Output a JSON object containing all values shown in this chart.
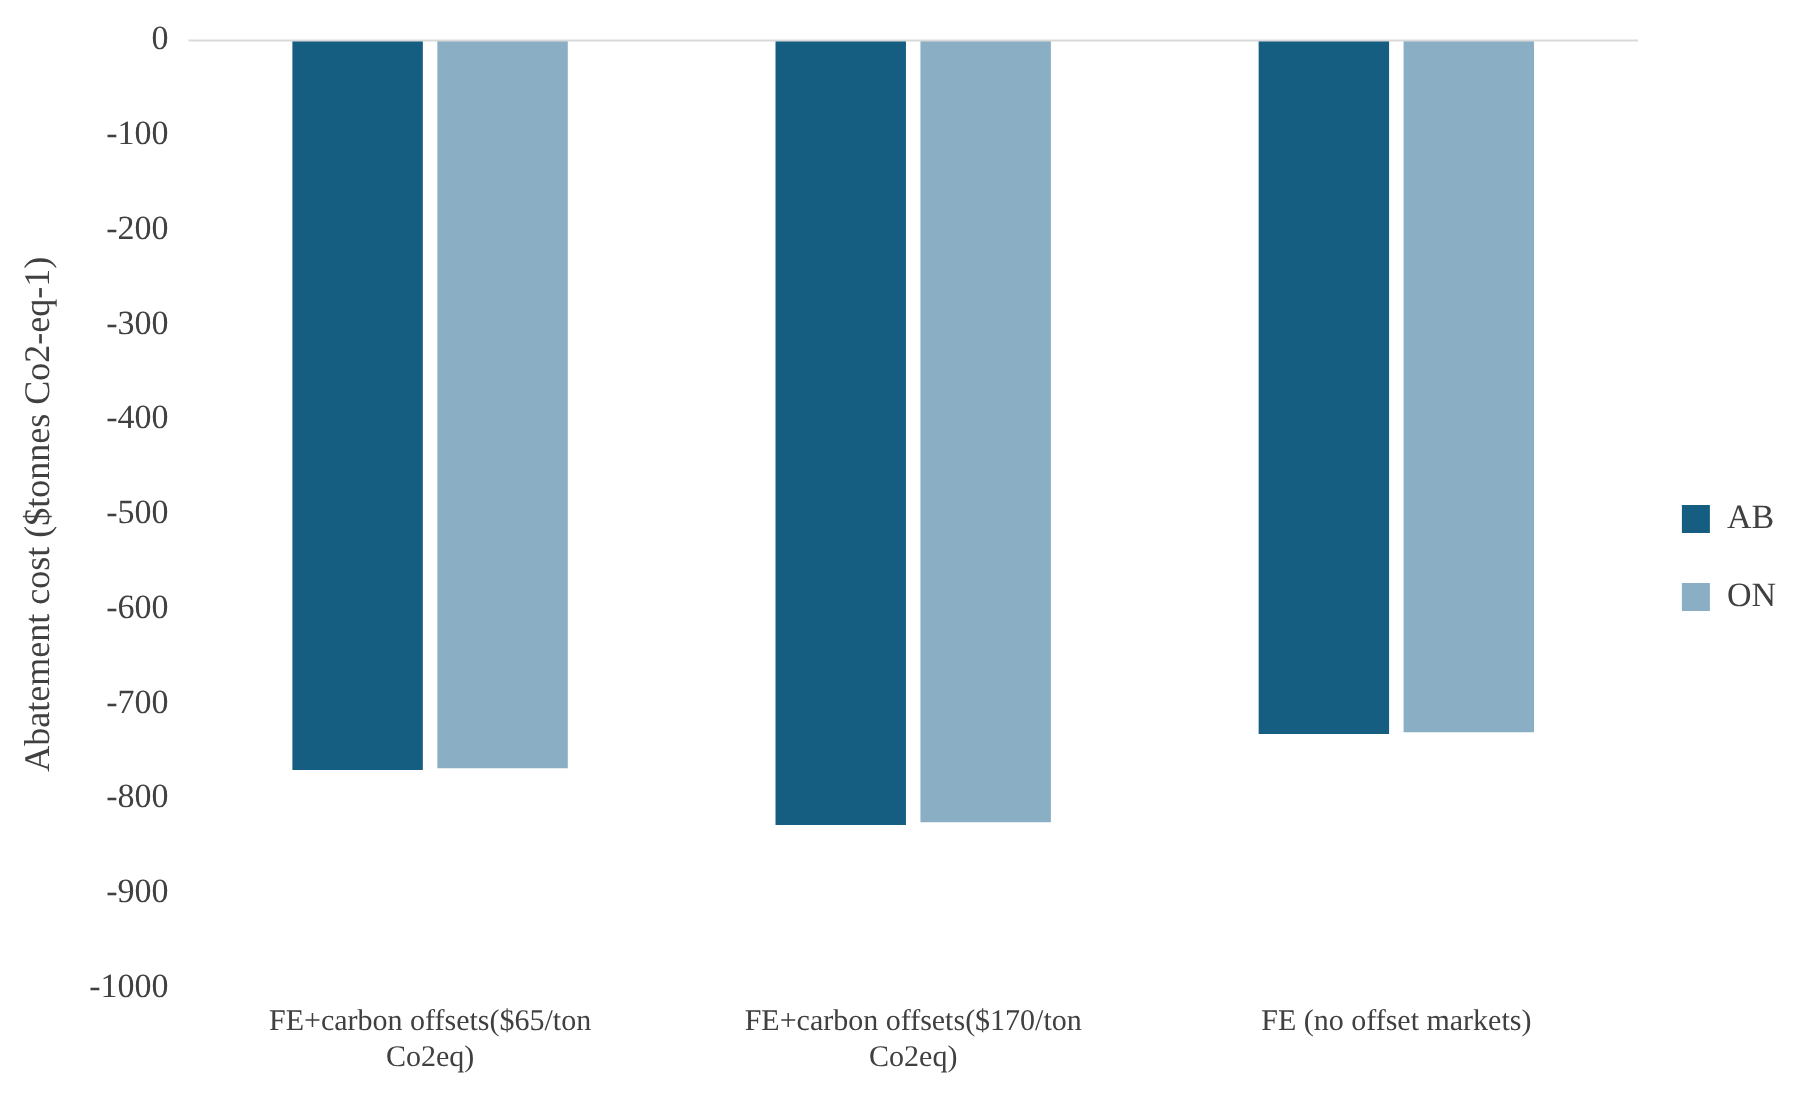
{
  "chart_data": {
    "type": "bar",
    "ylabel": "Abatement cost ($tonnes Co2-eq-1)",
    "categories": [
      "FE+carbon offsets($65/ton Co2eq)",
      "FE+carbon offsets($170/ton Co2eq)",
      "FE (no offset markets)"
    ],
    "series": [
      {
        "name": "AB",
        "color": "#155e82",
        "values": [
          -770,
          -828,
          -732
        ]
      },
      {
        "name": "ON",
        "color": "#8aaec3",
        "values": [
          -768,
          -825,
          -730
        ]
      }
    ],
    "ylim": [
      -1000,
      0
    ],
    "yticks": [
      -1000,
      -900,
      -800,
      -700,
      -600,
      -500,
      -400,
      -300,
      -200,
      -100,
      0
    ],
    "grid": false,
    "legend": "right"
  }
}
